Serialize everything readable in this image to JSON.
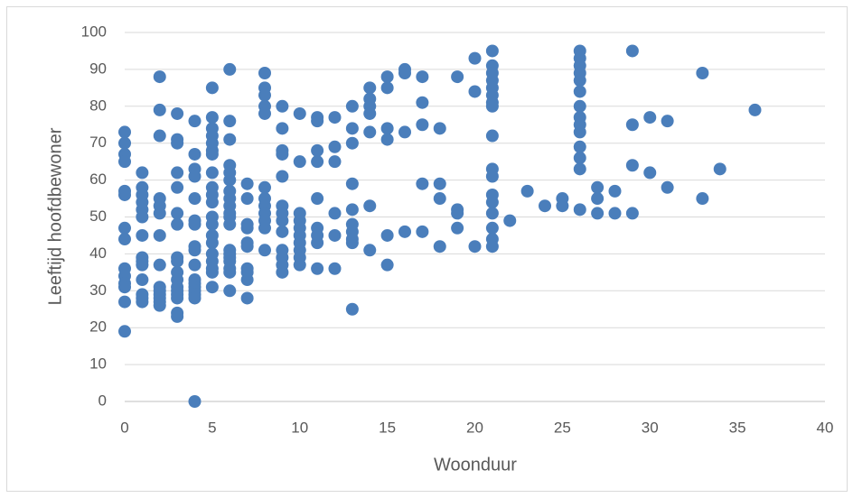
{
  "chart_data": {
    "type": "scatter",
    "x_label": "Woonduur",
    "y_label": "Leeftijd hoofdbewoner",
    "xlim": [
      0,
      40
    ],
    "xticks": [
      0,
      5,
      10,
      15,
      20,
      25,
      30,
      35,
      40
    ],
    "ylim": [
      0,
      100
    ],
    "yticks": [
      0,
      10,
      20,
      30,
      40,
      50,
      60,
      70,
      80,
      90,
      100
    ],
    "grid": true,
    "series": [
      {
        "color": "#4a7ebb",
        "x": [
          0,
          0,
          0,
          0,
          0,
          0,
          0,
          0,
          0,
          0,
          0,
          0,
          0,
          0,
          1,
          1,
          1,
          1,
          1,
          1,
          1,
          1,
          1,
          1,
          1,
          1,
          1,
          1,
          2,
          2,
          2,
          2,
          2,
          2,
          2,
          2,
          2,
          2,
          2,
          2,
          2,
          2,
          3,
          3,
          3,
          3,
          3,
          3,
          3,
          3,
          3,
          3,
          3,
          3,
          3,
          3,
          3,
          3,
          3,
          4,
          4,
          4,
          4,
          4,
          4,
          4,
          4,
          4,
          4,
          4,
          4,
          4,
          4,
          4,
          4,
          4,
          5,
          5,
          5,
          5,
          5,
          5,
          5,
          5,
          5,
          5,
          5,
          5,
          5,
          5,
          5,
          5,
          5,
          5,
          5,
          5,
          6,
          6,
          6,
          6,
          6,
          6,
          6,
          6,
          6,
          6,
          6,
          6,
          6,
          6,
          6,
          6,
          6,
          6,
          6,
          7,
          7,
          7,
          7,
          7,
          7,
          7,
          7,
          7,
          7,
          8,
          8,
          8,
          8,
          8,
          8,
          8,
          8,
          8,
          8,
          8,
          8,
          9,
          9,
          9,
          9,
          9,
          9,
          9,
          9,
          9,
          9,
          9,
          9,
          9,
          10,
          10,
          10,
          10,
          10,
          10,
          10,
          10,
          10,
          10,
          11,
          11,
          11,
          11,
          11,
          11,
          11,
          11,
          11,
          12,
          12,
          12,
          12,
          12,
          12,
          13,
          13,
          13,
          13,
          13,
          13,
          13,
          13,
          13,
          13,
          14,
          14,
          14,
          14,
          14,
          14,
          14,
          15,
          15,
          15,
          15,
          15,
          15,
          16,
          16,
          16,
          16,
          17,
          17,
          17,
          17,
          17,
          18,
          18,
          18,
          18,
          19,
          19,
          19,
          19,
          20,
          20,
          20,
          21,
          21,
          21,
          21,
          21,
          21,
          21,
          21,
          21,
          21,
          21,
          21,
          21,
          21,
          21,
          21,
          21,
          22,
          23,
          24,
          25,
          25,
          26,
          26,
          26,
          26,
          26,
          26,
          26,
          26,
          26,
          26,
          26,
          26,
          26,
          26,
          27,
          27,
          27,
          28,
          28,
          29,
          29,
          29,
          29,
          30,
          30,
          31,
          31,
          33,
          33,
          34,
          36
        ],
        "values": [
          73,
          70,
          67,
          65,
          57,
          56,
          47,
          44,
          36,
          34,
          32,
          31,
          27,
          19,
          62,
          58,
          56,
          54,
          52,
          50,
          45,
          39,
          38,
          37,
          33,
          29,
          28,
          27,
          88,
          79,
          72,
          55,
          53,
          51,
          45,
          37,
          31,
          30,
          29,
          28,
          27,
          26,
          78,
          71,
          70,
          62,
          58,
          51,
          48,
          39,
          38,
          35,
          33,
          31,
          30,
          29,
          28,
          24,
          23,
          76,
          67,
          63,
          61,
          55,
          49,
          48,
          42,
          41,
          37,
          33,
          32,
          31,
          30,
          29,
          28,
          0,
          85,
          77,
          74,
          72,
          70,
          68,
          67,
          62,
          58,
          56,
          54,
          50,
          48,
          45,
          43,
          40,
          38,
          36,
          35,
          31,
          90,
          76,
          71,
          64,
          62,
          60,
          57,
          55,
          53,
          51,
          50,
          48,
          41,
          40,
          39,
          38,
          36,
          35,
          30,
          59,
          55,
          48,
          47,
          43,
          42,
          36,
          35,
          33,
          28,
          89,
          85,
          83,
          80,
          78,
          58,
          55,
          53,
          51,
          49,
          47,
          41,
          80,
          74,
          68,
          67,
          61,
          53,
          51,
          49,
          46,
          41,
          39,
          37,
          35,
          78,
          65,
          51,
          49,
          47,
          45,
          43,
          41,
          39,
          37,
          77,
          76,
          68,
          65,
          55,
          47,
          45,
          43,
          36,
          77,
          69,
          65,
          51,
          45,
          36,
          80,
          74,
          70,
          59,
          52,
          48,
          46,
          44,
          43,
          25,
          85,
          82,
          80,
          78,
          73,
          53,
          41,
          88,
          85,
          74,
          71,
          45,
          37,
          90,
          89,
          73,
          46,
          88,
          81,
          75,
          59,
          46,
          74,
          59,
          55,
          42,
          88,
          52,
          51,
          47,
          93,
          84,
          42,
          95,
          91,
          89,
          87,
          85,
          83,
          81,
          80,
          72,
          63,
          61,
          56,
          54,
          51,
          47,
          44,
          42,
          49,
          57,
          53,
          55,
          53,
          95,
          93,
          91,
          89,
          87,
          84,
          80,
          77,
          75,
          73,
          69,
          66,
          63,
          52,
          58,
          55,
          51,
          57,
          51,
          95,
          75,
          64,
          51,
          77,
          62,
          76,
          58,
          89,
          55,
          63,
          79
        ]
      }
    ]
  }
}
